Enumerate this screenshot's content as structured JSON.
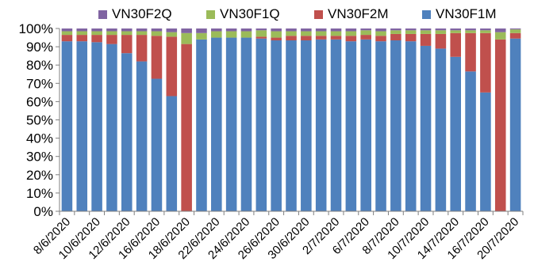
{
  "chart_data": {
    "type": "bar",
    "stacked": true,
    "title": "",
    "xlabel": "",
    "ylabel": "",
    "ylim": [
      0,
      100
    ],
    "y_ticks": [
      "0%",
      "10%",
      "20%",
      "30%",
      "40%",
      "50%",
      "60%",
      "70%",
      "80%",
      "90%",
      "100%"
    ],
    "grid": false,
    "legend_position": "top",
    "categories": [
      "8/6/2020",
      "9/6/2020",
      "10/6/2020",
      "11/6/2020",
      "12/6/2020",
      "15/6/2020",
      "16/6/2020",
      "17/6/2020",
      "18/6/2020",
      "19/6/2020",
      "22/6/2020",
      "23/6/2020",
      "24/6/2020",
      "25/6/2020",
      "26/6/2020",
      "29/6/2020",
      "30/6/2020",
      "1/7/2020",
      "2/7/2020",
      "3/7/2020",
      "6/7/2020",
      "7/7/2020",
      "8/7/2020",
      "9/7/2020",
      "10/7/2020",
      "13/7/2020",
      "14/7/2020",
      "15/7/2020",
      "16/7/2020",
      "17/7/2020",
      "20/7/2020"
    ],
    "tick_labels": [
      "8/6/2020",
      "",
      "10/6/2020",
      "",
      "12/6/2020",
      "",
      "16/6/2020",
      "",
      "18/6/2020",
      "",
      "22/6/2020",
      "",
      "24/6/2020",
      "",
      "26/6/2020",
      "",
      "30/6/2020",
      "",
      "2/7/2020",
      "",
      "6/7/2020",
      "",
      "8/7/2020",
      "",
      "10/7/2020",
      "",
      "14/7/2020",
      "",
      "16/7/2020",
      "",
      "20/7/2020"
    ],
    "series": [
      {
        "name": "VN30F1M",
        "color": "#4f81bd",
        "values": [
          93,
          93,
          92.5,
          91.5,
          86.5,
          82,
          72.5,
          63,
          0,
          94,
          95,
          95,
          95,
          94.5,
          93.5,
          93.5,
          93.5,
          94,
          94,
          93,
          94,
          93,
          93.5,
          93,
          90.5,
          89,
          84.5,
          76.5,
          65,
          0,
          94.5
        ]
      },
      {
        "name": "VN30F2M",
        "color": "#c0504d",
        "values": [
          3.5,
          3.5,
          4,
          5,
          10,
          14.5,
          23.5,
          32.5,
          91.5,
          0,
          0,
          0,
          0,
          1,
          1.5,
          2.5,
          2.5,
          2,
          2,
          3,
          2.5,
          3,
          3.5,
          4,
          6.5,
          8,
          13,
          21,
          32.5,
          94,
          3
        ]
      },
      {
        "name": "VN30F1Q",
        "color": "#9bbb59",
        "values": [
          2,
          2,
          2,
          2,
          2,
          2,
          2.5,
          2.5,
          6,
          3.5,
          3.5,
          3.5,
          3.5,
          3.5,
          3.5,
          2.5,
          2.5,
          2.5,
          2.5,
          2.5,
          2.5,
          2.5,
          2,
          2,
          2,
          2,
          1.5,
          1.5,
          1.5,
          4,
          2
        ]
      },
      {
        "name": "VN30F2Q",
        "color": "#8064a2",
        "values": [
          1.5,
          1.5,
          1.5,
          1.5,
          1.5,
          1.5,
          1.5,
          2,
          2.5,
          2.5,
          1.5,
          1.5,
          1.5,
          1,
          1.5,
          1.5,
          1.5,
          1.5,
          1.5,
          1.5,
          1,
          1.5,
          1,
          1,
          1,
          1,
          1,
          1,
          1,
          2,
          0.5
        ]
      }
    ],
    "legend_order": [
      "VN30F2Q",
      "VN30F1Q",
      "VN30F2M",
      "VN30F1M"
    ]
  }
}
